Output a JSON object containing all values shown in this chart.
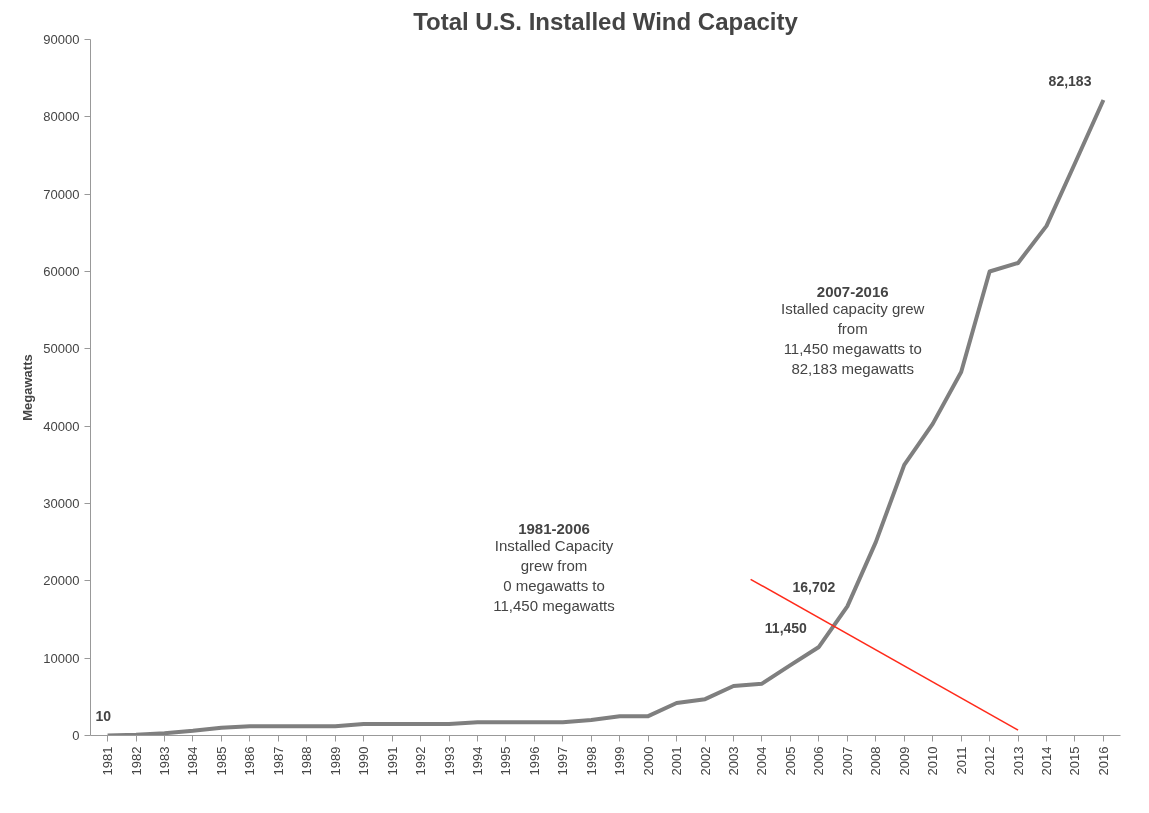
{
  "chart_data": {
    "type": "line",
    "title": "Total U.S. Installed Wind Capacity",
    "ylabel": "Megawatts",
    "xlim": [
      1980.4,
      2016.6
    ],
    "xticks": [
      1981,
      1982,
      1983,
      1984,
      1985,
      1986,
      1987,
      1988,
      1989,
      1990,
      1991,
      1992,
      1993,
      1994,
      1995,
      1996,
      1997,
      1998,
      1999,
      2000,
      2001,
      2002,
      2003,
      2004,
      2005,
      2006,
      2007,
      2008,
      2009,
      2010,
      2011,
      2012,
      2013,
      2014,
      2015,
      2016
    ],
    "ylim": [
      0,
      90000
    ],
    "yticks": [
      0,
      10000,
      20000,
      30000,
      40000,
      50000,
      60000,
      70000,
      80000,
      90000
    ],
    "grid": false,
    "series": [
      {
        "color": "#7f7f7f",
        "x": [
          1981,
          1982,
          1983,
          1984,
          1985,
          1986,
          1987,
          1988,
          1989,
          1990,
          1991,
          1992,
          1993,
          1994,
          1995,
          1996,
          1997,
          1998,
          1999,
          2000,
          2001,
          2002,
          2003,
          2004,
          2005,
          2006,
          2007,
          2008,
          2009,
          2010,
          2011,
          2012,
          2013,
          2014,
          2015,
          2016
        ],
        "values": [
          10,
          100,
          300,
          600,
          1000,
          1200,
          1200,
          1200,
          1200,
          1500,
          1500,
          1500,
          1500,
          1700,
          1700,
          1700,
          1700,
          2000,
          2500,
          2500,
          4200,
          4700,
          6400,
          6700,
          9100,
          11450,
          16702,
          25000,
          35000,
          40300,
          47000,
          60000,
          61100,
          65900,
          74000,
          82183
        ],
        "value_labels": [
          "10",
          null,
          null,
          null,
          null,
          null,
          null,
          null,
          null,
          null,
          null,
          null,
          null,
          null,
          null,
          null,
          null,
          null,
          null,
          null,
          null,
          null,
          null,
          null,
          null,
          "11,450",
          "16,702",
          null,
          null,
          null,
          null,
          null,
          null,
          null,
          null,
          "82,183"
        ]
      },
      {
        "color": "#ff2a1a",
        "x": [
          2003.6,
          2013.0
        ],
        "values": [
          20200,
          700
        ]
      }
    ],
    "annotations": [
      "1981-2006\nInstalled Capacity\ngrew from\n0 megawatts to\n11,450 megawatts",
      "2007-2016\nIstalled capacity grew\nfrom\n11,450 megawatts to\n82,183 megawatts"
    ]
  }
}
